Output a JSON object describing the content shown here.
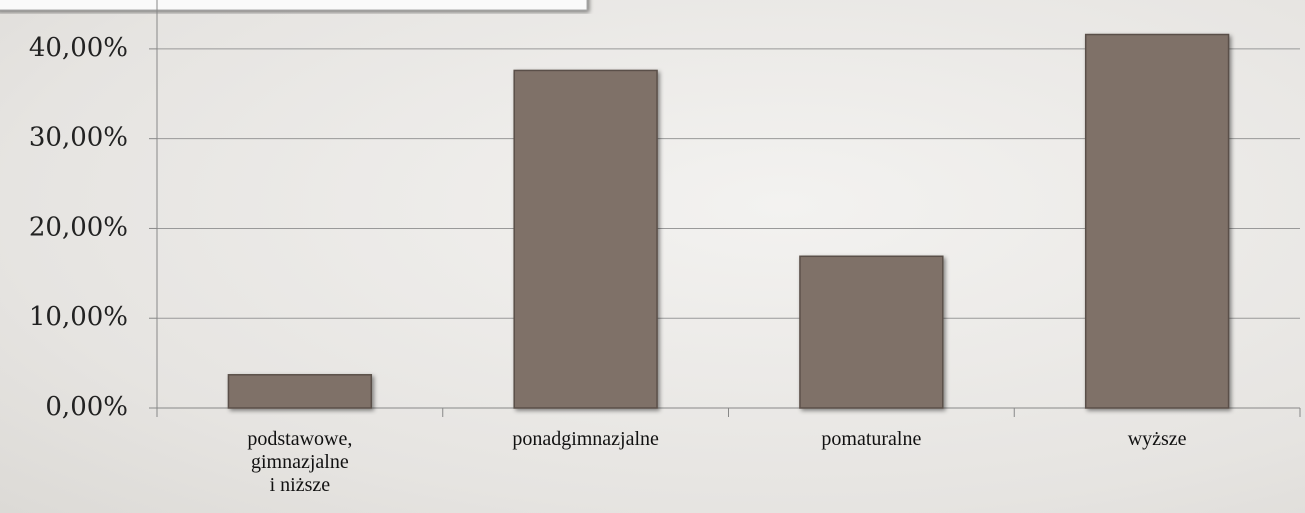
{
  "chart_data": {
    "type": "bar",
    "categories": [
      "podstawowe,\ngimnazjalne\ni niższe",
      "ponadgimnazjalne",
      "pomaturalne",
      "wyższe"
    ],
    "values": [
      3.7,
      37.6,
      16.9,
      41.6
    ],
    "color": "#7f7168",
    "ylim": [
      0,
      45
    ],
    "yticks": [
      {
        "value": 0,
        "label": "0,00%"
      },
      {
        "value": 10,
        "label": "10,00%"
      },
      {
        "value": 20,
        "label": "20,00%"
      },
      {
        "value": 30,
        "label": "30,00%"
      },
      {
        "value": 40,
        "label": "40,00%"
      }
    ],
    "grid": true
  }
}
